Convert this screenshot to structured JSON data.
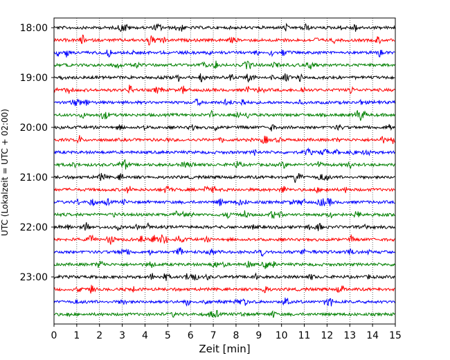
{
  "chart_data": {
    "type": "line",
    "title": "",
    "xlabel": "Zeit  [min]",
    "ylabel": "UTC (Lokalzeit = UTC + 02:00)",
    "xlim": [
      0,
      15
    ],
    "x_ticks": [
      "0",
      "1",
      "2",
      "3",
      "4",
      "5",
      "6",
      "7",
      "8",
      "9",
      "10",
      "11",
      "12",
      "13",
      "14",
      "15"
    ],
    "y_tick_labels": [
      {
        "label": "18:00",
        "trace_index": 0
      },
      {
        "label": "19:00",
        "trace_index": 4
      },
      {
        "label": "20:00",
        "trace_index": 8
      },
      {
        "label": "21:00",
        "trace_index": 12
      },
      {
        "label": "22:00",
        "trace_index": 16
      },
      {
        "label": "23:00",
        "trace_index": 20
      }
    ],
    "vertical_grid": "dotted at every minute",
    "trace_interval_min": 15,
    "trace_count": 24,
    "trace_colors": [
      "#000000",
      "#ff0000",
      "#0000ff",
      "#008000"
    ],
    "traces": [
      {
        "start": "18:00",
        "color": "#000000"
      },
      {
        "start": "18:15",
        "color": "#ff0000"
      },
      {
        "start": "18:30",
        "color": "#0000ff"
      },
      {
        "start": "18:45",
        "color": "#008000"
      },
      {
        "start": "19:00",
        "color": "#000000"
      },
      {
        "start": "19:15",
        "color": "#ff0000"
      },
      {
        "start": "19:30",
        "color": "#0000ff"
      },
      {
        "start": "19:45",
        "color": "#008000"
      },
      {
        "start": "20:00",
        "color": "#000000"
      },
      {
        "start": "20:15",
        "color": "#ff0000"
      },
      {
        "start": "20:30",
        "color": "#0000ff"
      },
      {
        "start": "20:45",
        "color": "#008000"
      },
      {
        "start": "21:00",
        "color": "#000000"
      },
      {
        "start": "21:15",
        "color": "#ff0000"
      },
      {
        "start": "21:30",
        "color": "#0000ff"
      },
      {
        "start": "21:45",
        "color": "#008000"
      },
      {
        "start": "22:00",
        "color": "#000000"
      },
      {
        "start": "22:15",
        "color": "#ff0000"
      },
      {
        "start": "22:30",
        "color": "#0000ff"
      },
      {
        "start": "22:45",
        "color": "#008000"
      },
      {
        "start": "23:00",
        "color": "#000000"
      },
      {
        "start": "23:15",
        "color": "#ff0000"
      },
      {
        "start": "23:30",
        "color": "#0000ff"
      },
      {
        "start": "23:45",
        "color": "#008000"
      }
    ]
  }
}
